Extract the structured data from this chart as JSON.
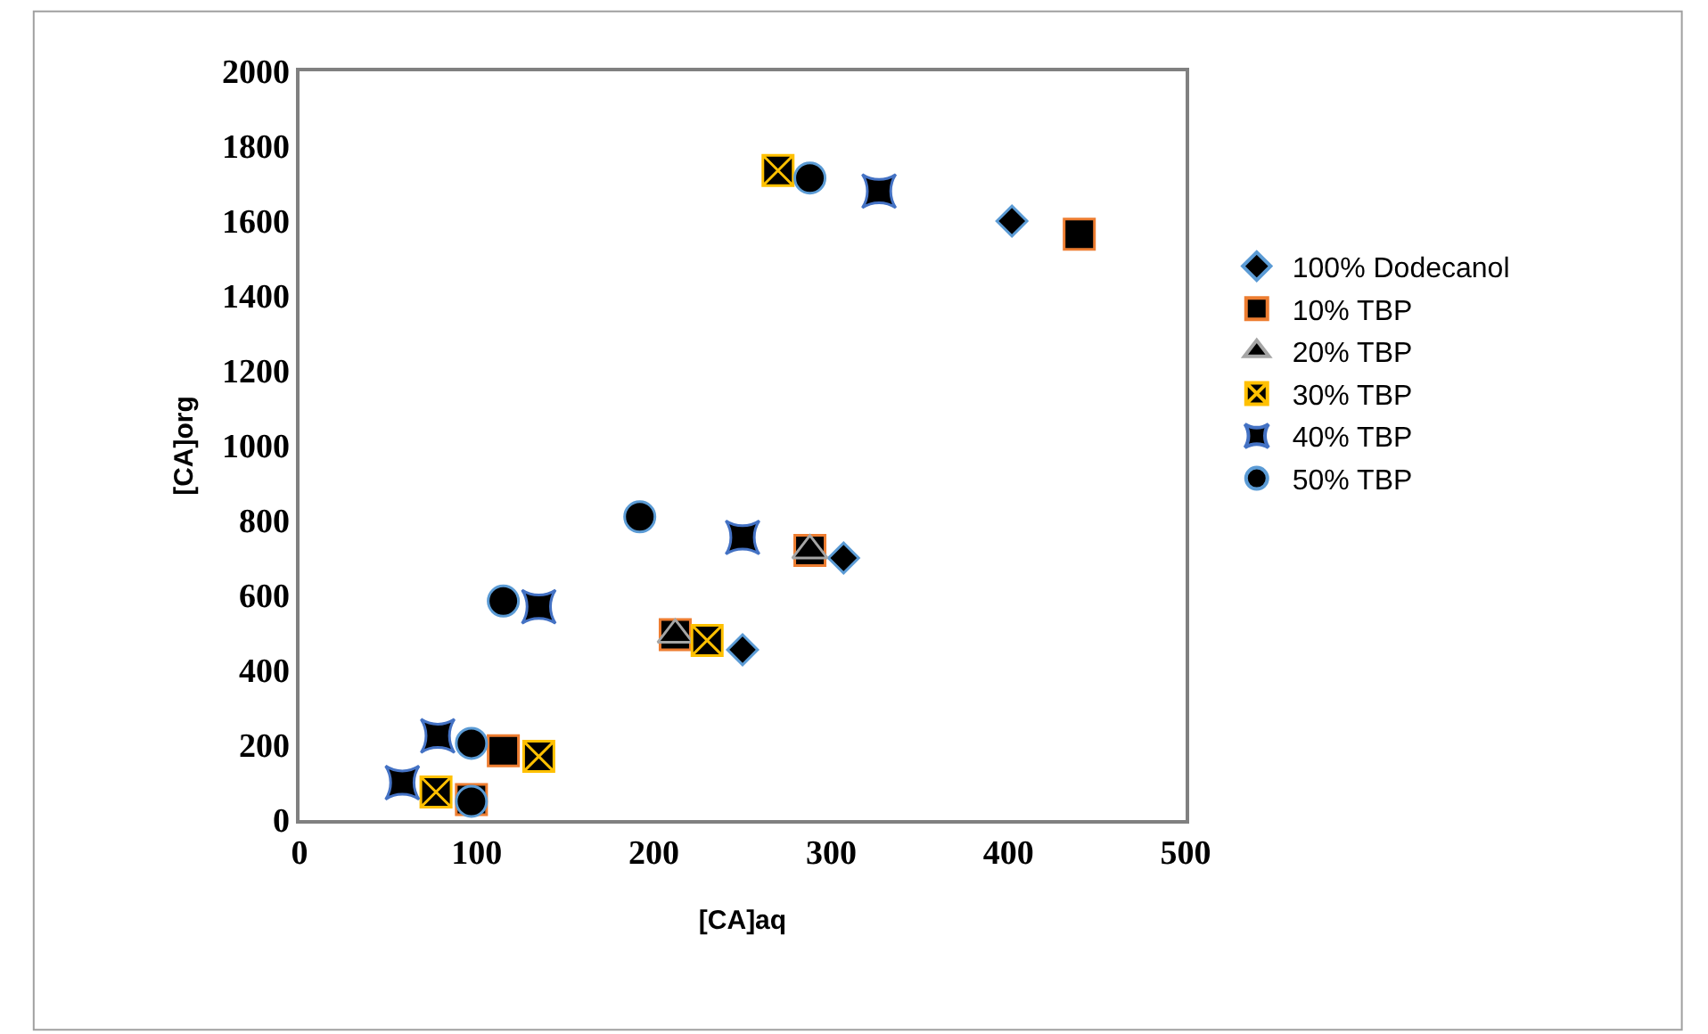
{
  "chart_data": {
    "type": "scatter",
    "xlabel": "[CA]aq",
    "ylabel": "[CA]org",
    "xlim": [
      0,
      500
    ],
    "xticks": [
      0,
      100,
      200,
      300,
      400,
      500
    ],
    "ylim": [
      0,
      2000
    ],
    "yticks": [
      0,
      200,
      400,
      600,
      800,
      1000,
      1200,
      1400,
      1600,
      1800,
      2000
    ],
    "legend": "right",
    "series": [
      {
        "name": "100% Dodecanol",
        "color": "#000000",
        "marker": "diamond",
        "x": [
          250,
          307,
          402
        ],
        "values": [
          455,
          700,
          1600
        ]
      },
      {
        "name": "10% TBP",
        "color": "#000000",
        "marker": "square",
        "x": [
          97,
          115,
          212,
          288,
          440
        ],
        "values": [
          55,
          185,
          495,
          720,
          1565
        ]
      },
      {
        "name": "20% TBP",
        "color": "#000000",
        "marker": "triangle",
        "x": [
          212,
          288
        ],
        "values": [
          495,
          720
        ]
      },
      {
        "name": "30% TBP",
        "color": "#000000",
        "marker": "cross",
        "x": [
          77,
          135,
          230,
          270
        ],
        "values": [
          75,
          170,
          480,
          1735
        ]
      },
      {
        "name": "40% TBP",
        "color": "#000000",
        "marker": "star",
        "x": [
          58,
          78,
          135,
          250,
          327
        ],
        "values": [
          100,
          225,
          570,
          755,
          1680
        ]
      },
      {
        "name": "50% TBP",
        "color": "#000000",
        "marker": "circle",
        "x": [
          97,
          97,
          115,
          192,
          288
        ],
        "values": [
          50,
          205,
          585,
          810,
          1715
        ]
      }
    ]
  }
}
